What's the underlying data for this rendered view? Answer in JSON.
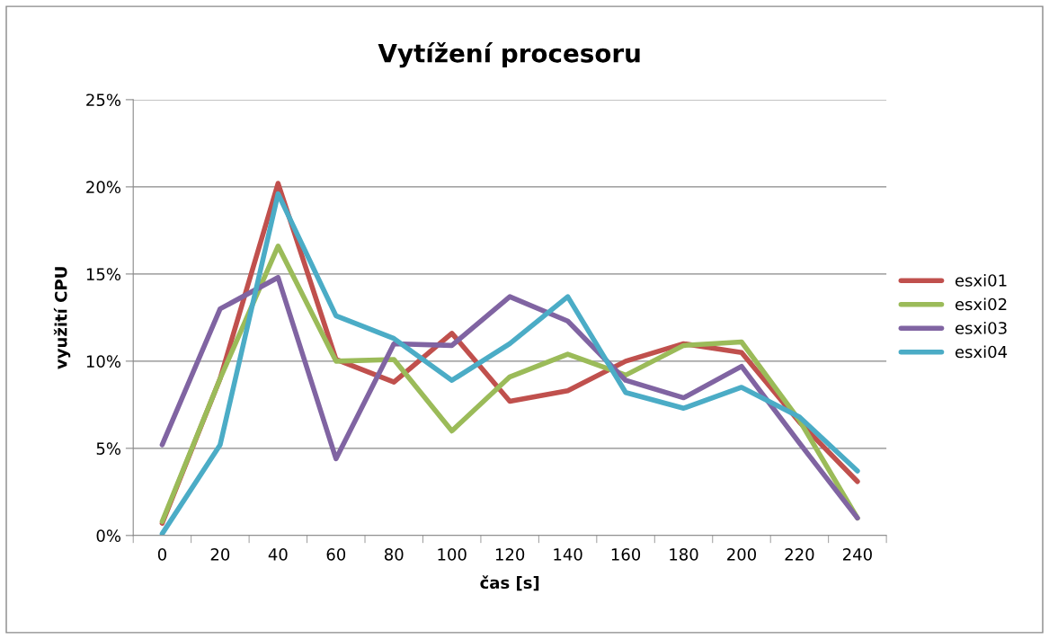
{
  "chart_data": {
    "type": "line",
    "title": "Vytížení procesoru",
    "xlabel": "čas [s]",
    "ylabel": "využití CPU",
    "categories": [
      "0",
      "20",
      "40",
      "60",
      "80",
      "100",
      "120",
      "140",
      "160",
      "180",
      "200",
      "220",
      "240"
    ],
    "series": [
      {
        "name": "esxi01",
        "color": "#c0504d",
        "values": [
          0.7,
          9,
          20.2,
          10.1,
          8.8,
          11.6,
          7.7,
          8.3,
          10,
          11,
          10.5,
          6.5,
          3.1
        ]
      },
      {
        "name": "esxi02",
        "color": "#9bbb59",
        "values": [
          0.8,
          9,
          16.6,
          10,
          10.1,
          6,
          9.1,
          10.4,
          9.2,
          10.9,
          11.1,
          6.6,
          1.0
        ]
      },
      {
        "name": "esxi03",
        "color": "#8064a2",
        "values": [
          5.2,
          13,
          14.8,
          4.4,
          11,
          10.9,
          13.7,
          12.3,
          8.9,
          7.9,
          9.7,
          5.3,
          1.0
        ]
      },
      {
        "name": "esxi04",
        "color": "#4bacc6",
        "values": [
          0.1,
          5.2,
          19.6,
          12.6,
          11.3,
          8.9,
          11,
          13.7,
          8.2,
          7.3,
          8.5,
          6.8,
          3.7
        ]
      }
    ],
    "ylim": [
      0,
      25
    ],
    "yticks": [
      {
        "value": 0,
        "label": "0%"
      },
      {
        "value": 5,
        "label": "5%"
      },
      {
        "value": 10,
        "label": "10%"
      },
      {
        "value": 15,
        "label": "15%"
      },
      {
        "value": 20,
        "label": "20%"
      },
      {
        "value": 25,
        "label": "25%"
      }
    ],
    "grid": "y",
    "legend": "right",
    "marker": "none",
    "line_style": "solid"
  }
}
